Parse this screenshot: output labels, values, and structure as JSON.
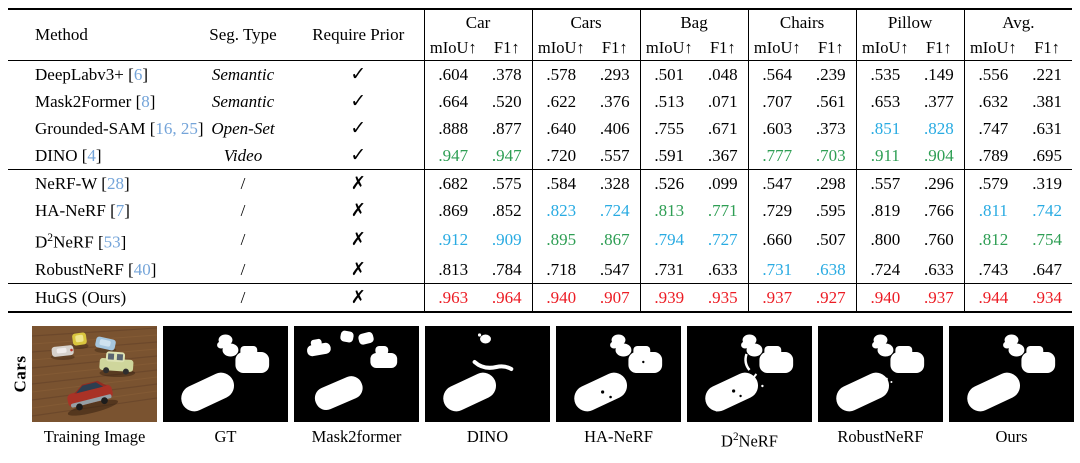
{
  "colors": {
    "best_green": "#2E9E54",
    "second_best_blue": "#29ABE2",
    "ours_red": "#EC1C24",
    "citation_blue": "#74A4D9"
  },
  "table": {
    "headers": {
      "method": "Method",
      "seg_type": "Seg. Type",
      "require_prior": "Require Prior",
      "miou": "mIoU↑",
      "f1": "F1↑",
      "groups": [
        "Car",
        "Cars",
        "Bag",
        "Chairs",
        "Pillow",
        "Avg."
      ]
    },
    "glyphs": {
      "check": "✓",
      "cross": "✗"
    },
    "blocks": [
      {
        "rows": [
          {
            "key": "deeplabv3",
            "method": {
              "text": "DeepLabv3+",
              "cite": "6"
            },
            "seg_type": "Semantic",
            "prior": "check",
            "cells": [
              [
                ".604",
                "k"
              ],
              [
                ".378",
                "k"
              ],
              [
                ".578",
                "k"
              ],
              [
                ".293",
                "k"
              ],
              [
                ".501",
                "k"
              ],
              [
                ".048",
                "k"
              ],
              [
                ".564",
                "k"
              ],
              [
                ".239",
                "k"
              ],
              [
                ".535",
                "k"
              ],
              [
                ".149",
                "k"
              ],
              [
                ".556",
                "k"
              ],
              [
                ".221",
                "k"
              ]
            ]
          },
          {
            "key": "mask2former",
            "method": {
              "text": "Mask2Former",
              "cite": "8"
            },
            "seg_type": "Semantic",
            "prior": "check",
            "cells": [
              [
                ".664",
                "k"
              ],
              [
                ".520",
                "k"
              ],
              [
                ".622",
                "k"
              ],
              [
                ".376",
                "k"
              ],
              [
                ".513",
                "k"
              ],
              [
                ".071",
                "k"
              ],
              [
                ".707",
                "k"
              ],
              [
                ".561",
                "k"
              ],
              [
                ".653",
                "k"
              ],
              [
                ".377",
                "k"
              ],
              [
                ".632",
                "k"
              ],
              [
                ".381",
                "k"
              ]
            ]
          },
          {
            "key": "grounded-sam",
            "method": {
              "text": "Grounded-SAM",
              "cite": "16, 25"
            },
            "seg_type": "Open-Set",
            "prior": "check",
            "cells": [
              [
                ".888",
                "k"
              ],
              [
                ".877",
                "k"
              ],
              [
                ".640",
                "k"
              ],
              [
                ".406",
                "k"
              ],
              [
                ".755",
                "k"
              ],
              [
                ".671",
                "k"
              ],
              [
                ".603",
                "k"
              ],
              [
                ".373",
                "k"
              ],
              [
                ".851",
                "b"
              ],
              [
                ".828",
                "b"
              ],
              [
                ".747",
                "k"
              ],
              [
                ".631",
                "k"
              ]
            ]
          },
          {
            "key": "dino",
            "method": {
              "text": "DINO",
              "cite": "4"
            },
            "seg_type": "Video",
            "prior": "check",
            "cells": [
              [
                ".947",
                "g"
              ],
              [
                ".947",
                "g"
              ],
              [
                ".720",
                "k"
              ],
              [
                ".557",
                "k"
              ],
              [
                ".591",
                "k"
              ],
              [
                ".367",
                "k"
              ],
              [
                ".777",
                "g"
              ],
              [
                ".703",
                "g"
              ],
              [
                ".911",
                "g"
              ],
              [
                ".904",
                "g"
              ],
              [
                ".789",
                "k"
              ],
              [
                ".695",
                "k"
              ]
            ]
          }
        ]
      },
      {
        "rows": [
          {
            "key": "nerf-w",
            "method": {
              "text": "NeRF-W",
              "cite": "28"
            },
            "seg_type": "/",
            "prior": "cross",
            "cells": [
              [
                ".682",
                "k"
              ],
              [
                ".575",
                "k"
              ],
              [
                ".584",
                "k"
              ],
              [
                ".328",
                "k"
              ],
              [
                ".526",
                "k"
              ],
              [
                ".099",
                "k"
              ],
              [
                ".547",
                "k"
              ],
              [
                ".298",
                "k"
              ],
              [
                ".557",
                "k"
              ],
              [
                ".296",
                "k"
              ],
              [
                ".579",
                "k"
              ],
              [
                ".319",
                "k"
              ]
            ]
          },
          {
            "key": "ha-nerf",
            "method": {
              "text": "HA-NeRF",
              "cite": "7"
            },
            "seg_type": "/",
            "prior": "cross",
            "cells": [
              [
                ".869",
                "k"
              ],
              [
                ".852",
                "k"
              ],
              [
                ".823",
                "b"
              ],
              [
                ".724",
                "b"
              ],
              [
                ".813",
                "g"
              ],
              [
                ".771",
                "g"
              ],
              [
                ".729",
                "k"
              ],
              [
                ".595",
                "k"
              ],
              [
                ".819",
                "k"
              ],
              [
                ".766",
                "k"
              ],
              [
                ".811",
                "b"
              ],
              [
                ".742",
                "b"
              ]
            ]
          },
          {
            "key": "d2nerf",
            "method": {
              "text": "D",
              "sup": "2",
              "post": "NeRF",
              "cite": "53"
            },
            "seg_type": "/",
            "prior": "cross",
            "cells": [
              [
                ".912",
                "b"
              ],
              [
                ".909",
                "b"
              ],
              [
                ".895",
                "g"
              ],
              [
                ".867",
                "g"
              ],
              [
                ".794",
                "b"
              ],
              [
                ".727",
                "b"
              ],
              [
                ".660",
                "k"
              ],
              [
                ".507",
                "k"
              ],
              [
                ".800",
                "k"
              ],
              [
                ".760",
                "k"
              ],
              [
                ".812",
                "g"
              ],
              [
                ".754",
                "g"
              ]
            ]
          },
          {
            "key": "robustnerf",
            "method": {
              "text": "RobustNeRF",
              "cite": "40"
            },
            "seg_type": "/",
            "prior": "cross",
            "cells": [
              [
                ".813",
                "k"
              ],
              [
                ".784",
                "k"
              ],
              [
                ".718",
                "k"
              ],
              [
                ".547",
                "k"
              ],
              [
                ".731",
                "k"
              ],
              [
                ".633",
                "k"
              ],
              [
                ".731",
                "b"
              ],
              [
                ".638",
                "b"
              ],
              [
                ".724",
                "k"
              ],
              [
                ".633",
                "k"
              ],
              [
                ".743",
                "k"
              ],
              [
                ".647",
                "k"
              ]
            ]
          }
        ]
      },
      {
        "rows": [
          {
            "key": "hugs",
            "method": {
              "text": "HuGS (Ours)",
              "cite": null
            },
            "seg_type": "/",
            "prior": "cross",
            "cells": [
              [
                ".963",
                "r"
              ],
              [
                ".964",
                "r"
              ],
              [
                ".940",
                "r"
              ],
              [
                ".907",
                "r"
              ],
              [
                ".939",
                "r"
              ],
              [
                ".935",
                "r"
              ],
              [
                ".937",
                "r"
              ],
              [
                ".927",
                "r"
              ],
              [
                ".940",
                "r"
              ],
              [
                ".937",
                "r"
              ],
              [
                ".944",
                "r"
              ],
              [
                ".934",
                "r"
              ]
            ]
          }
        ]
      }
    ]
  },
  "figure": {
    "row_label": "Cars",
    "panels": [
      {
        "key": "training",
        "label": "Training Image",
        "variant": "photo"
      },
      {
        "key": "gt",
        "label": "GT",
        "variant": "gt"
      },
      {
        "key": "mask2former",
        "label": "Mask2former",
        "variant": "m2f"
      },
      {
        "key": "dino",
        "label": "DINO",
        "variant": "dino"
      },
      {
        "key": "ha-nerf",
        "label": "HA-NeRF",
        "variant": "hanerf"
      },
      {
        "key": "d2nerf",
        "label": {
          "pre": "D",
          "sup": "2",
          "post": "NeRF"
        },
        "variant": "d2nerf"
      },
      {
        "key": "robustnerf",
        "label": "RobustNeRF",
        "variant": "robustnerf"
      },
      {
        "key": "ours",
        "label": "Ours",
        "variant": "ours"
      }
    ]
  }
}
